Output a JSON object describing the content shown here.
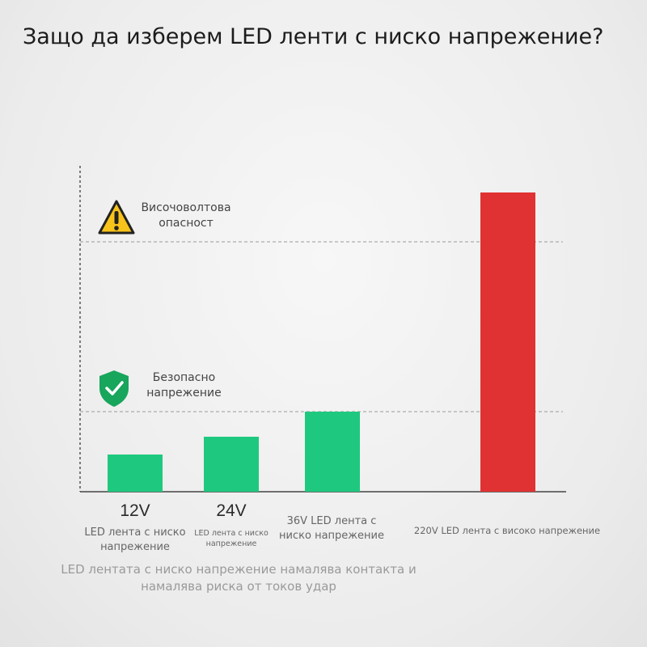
{
  "header": {
    "title": "Защо да изберем LED ленти с ниско напрежение?"
  },
  "zones": {
    "danger_label": "Височоволтова опасност",
    "safe_label": "Безопасно напрежение"
  },
  "caption": "LED лентата с ниско напрежение намалява контакта и намалява риска от токов удар",
  "colors": {
    "safe": "#1ec97f",
    "danger": "#e03232",
    "axis": "#555555",
    "dashed": "#9a9a9a"
  },
  "icons": {
    "danger": "warning-triangle-icon",
    "safe": "shield-check-icon"
  },
  "chart_data": {
    "type": "bar",
    "title": "Защо да изберем LED ленти с ниско напрежение?",
    "categories": [
      "12V",
      "24V",
      "36V",
      "220V"
    ],
    "category_labels": [
      "LED лента с ниско напрежение",
      "LED лента с ниско напрежение",
      "36V LED лента с ниско напрежение",
      "220V LED лента с високо напрежение"
    ],
    "values": [
      12,
      24,
      36,
      220
    ],
    "bar_colors": [
      "#1ec97f",
      "#1ec97f",
      "#1ec97f",
      "#e03232"
    ],
    "reference_lines": [
      {
        "label": "Безопасно напрежение",
        "value": 36
      },
      {
        "label": "Височоволтова опасност",
        "value": 180
      }
    ],
    "ylim": [
      0,
      220
    ],
    "xlabel": "",
    "ylabel": "",
    "grid": false
  }
}
